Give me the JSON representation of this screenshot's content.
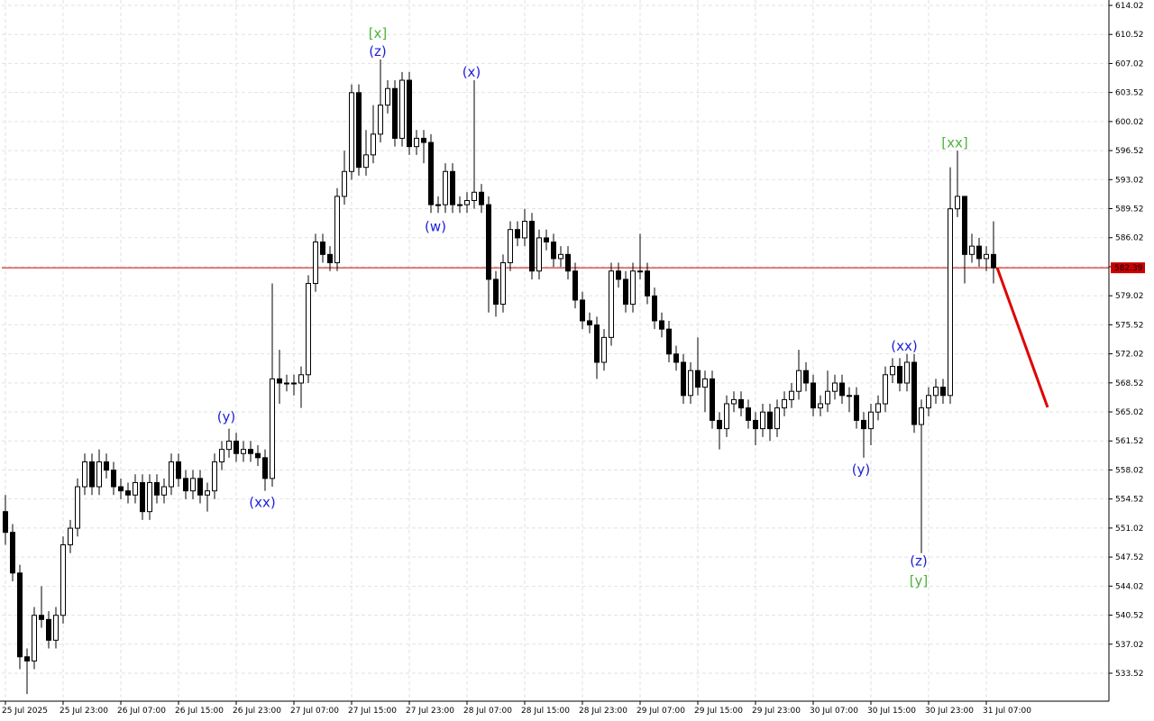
{
  "chart_data": {
    "type": "candlestick",
    "open": [
      553,
      550.5,
      545.6,
      535.5,
      535,
      540.5,
      540,
      537.5,
      540.5,
      549,
      551,
      556,
      559,
      556,
      559,
      558,
      556,
      555.5,
      555,
      556.5,
      553,
      556.5,
      555,
      556,
      559,
      557,
      555.5,
      557,
      555,
      555.5,
      559,
      560.5,
      561.5,
      560,
      560.5,
      560,
      559.5,
      557,
      569,
      568.5,
      568.5,
      568.5,
      569.5,
      580.5,
      585.5,
      584,
      583,
      591,
      594,
      603.5,
      594.5,
      596,
      598.5,
      602,
      604,
      598,
      605,
      597,
      598,
      597.5,
      590,
      590,
      594,
      590,
      590,
      590.5,
      591.5,
      590,
      581,
      578,
      583,
      587,
      586,
      588,
      582,
      586,
      585.5,
      583.5,
      584,
      582,
      578.5,
      576,
      575.5,
      571,
      574,
      582,
      581,
      578,
      582,
      582,
      579,
      576,
      575,
      572,
      571,
      567,
      570,
      568,
      569,
      564,
      563,
      566,
      566.5,
      565.5,
      564,
      563,
      565,
      563,
      565.5,
      566.5,
      567.5,
      570,
      568.5,
      565.5,
      566,
      567.5,
      568.5,
      567,
      567,
      564,
      563,
      565,
      566,
      569.5,
      570.5,
      568.5,
      571,
      563.5,
      565.5,
      567,
      568,
      567,
      589.5,
      591,
      584,
      585,
      583.5,
      584
    ],
    "high": [
      555,
      551.5,
      546.6,
      536.5,
      541.5,
      544,
      541,
      541.5,
      550,
      552,
      557,
      560,
      560,
      560.5,
      560,
      559,
      557,
      556.5,
      557.5,
      557.5,
      557.5,
      557.5,
      557,
      560,
      560,
      558,
      558,
      558,
      556.5,
      560,
      561.5,
      563,
      562.5,
      561.5,
      561.5,
      561,
      560.5,
      580.5,
      572.5,
      569.5,
      569.5,
      570.5,
      581.5,
      586.5,
      586.5,
      585,
      592,
      596.5,
      604.5,
      604.5,
      599,
      602,
      607.5,
      605,
      605,
      606,
      606,
      599,
      599,
      598.5,
      591,
      595,
      595,
      591,
      591.5,
      605,
      592.5,
      591,
      582,
      584,
      588,
      588,
      589.5,
      589,
      587,
      587,
      586.5,
      585,
      585,
      583,
      579.5,
      577,
      576.5,
      575,
      583,
      583,
      582,
      583,
      586.5,
      583,
      580,
      577,
      576,
      573,
      572,
      571,
      574,
      570,
      570,
      565,
      567,
      567.5,
      567.5,
      566.5,
      565,
      566,
      566,
      566.5,
      567.5,
      568.5,
      572.5,
      571,
      569.5,
      567,
      570,
      569.5,
      569.5,
      568,
      568,
      565,
      566,
      567,
      570.5,
      571.5,
      571.5,
      572,
      572,
      566.5,
      568,
      569,
      569,
      594.5,
      596.5,
      591,
      586.5,
      586,
      585,
      588
    ],
    "low": [
      549,
      544.6,
      534,
      531,
      534,
      539,
      536.5,
      536.5,
      539.5,
      548,
      550,
      555,
      555,
      555,
      557,
      555,
      554.5,
      554,
      554,
      552,
      552,
      554,
      554,
      555,
      556,
      554.5,
      554.5,
      554,
      553,
      554.5,
      558,
      559.5,
      559,
      559,
      559,
      558.5,
      555.5,
      556,
      566,
      567.5,
      567,
      565.5,
      568.5,
      579.5,
      583,
      582,
      582,
      590,
      593,
      593.5,
      593.5,
      595,
      597.5,
      601,
      597,
      597,
      596,
      596,
      595,
      589,
      589,
      589,
      589,
      589,
      589,
      589.5,
      589,
      577,
      576.5,
      577,
      582,
      585,
      585,
      581,
      581,
      584.5,
      582.5,
      582.5,
      581,
      577.5,
      575,
      574.5,
      569,
      570,
      573,
      580,
      577,
      577,
      581,
      578,
      575,
      574,
      571,
      570,
      566,
      566,
      567,
      565,
      563,
      560.5,
      562,
      565,
      564.5,
      563,
      561,
      562,
      561.5,
      562,
      564.5,
      565.5,
      566.5,
      567.5,
      564.5,
      564.5,
      565,
      566.5,
      566,
      565,
      563,
      559.5,
      561,
      564,
      565,
      568.5,
      567.5,
      567.5,
      562.5,
      548,
      564.5,
      566,
      566,
      566,
      588.5,
      580.5,
      583,
      582.5,
      582,
      580.5
    ],
    "close": [
      550.5,
      545.6,
      535.5,
      535,
      540.5,
      540,
      537.5,
      540.5,
      549,
      551,
      556,
      559,
      556,
      559,
      558,
      556,
      555.5,
      555,
      556.5,
      553,
      556.5,
      555,
      556,
      559,
      557,
      555.5,
      557,
      555,
      555.5,
      559,
      560.5,
      561.5,
      560,
      560.5,
      560,
      559.5,
      557,
      569,
      568.5,
      568.5,
      568.5,
      569.5,
      580.5,
      585.5,
      584,
      583,
      591,
      594,
      603.5,
      594.5,
      596,
      598.5,
      602,
      604,
      598,
      605,
      597,
      598,
      597.5,
      590,
      590,
      594,
      590,
      590,
      590.5,
      591.5,
      590,
      581,
      578,
      583,
      587,
      586,
      588,
      582,
      586,
      585.5,
      583.5,
      584,
      582,
      578.5,
      576,
      575.5,
      571,
      574,
      582,
      581,
      578,
      582,
      582,
      579,
      576,
      575,
      572,
      571,
      567,
      570,
      568,
      569,
      564,
      563,
      566,
      566.5,
      565.5,
      564,
      563,
      565,
      563,
      565.5,
      566.5,
      567.5,
      570,
      568.5,
      565.5,
      566,
      567.5,
      568.5,
      567,
      567,
      564,
      563,
      565,
      566,
      569.5,
      570.5,
      568.5,
      571,
      563.5,
      565.5,
      567,
      568,
      567,
      589.5,
      591,
      584,
      585,
      583.5,
      584,
      582.39
    ],
    "current_price": 582.39,
    "ylim": [
      530.15,
      614.02
    ],
    "yticks": [
      614.02,
      610.52,
      607.02,
      603.52,
      600.02,
      596.52,
      593.02,
      589.52,
      586.02,
      582.52,
      579.02,
      575.52,
      572.02,
      568.52,
      565.02,
      561.52,
      558.02,
      554.52,
      551.02,
      547.52,
      544.02,
      540.52,
      537.02,
      533.52
    ],
    "xlim": [
      -0.5,
      153
    ],
    "xticks": [
      {
        "value": 0,
        "label": "25 Jul 2025"
      },
      {
        "value": 8,
        "label": "25 Jul 23:00"
      },
      {
        "value": 16,
        "label": "26 Jul 07:00"
      },
      {
        "value": 24,
        "label": "26 Jul 15:00"
      },
      {
        "value": 32,
        "label": "26 Jul 23:00"
      },
      {
        "value": 40,
        "label": "27 Jul 07:00"
      },
      {
        "value": 48,
        "label": "27 Jul 15:00"
      },
      {
        "value": 56,
        "label": "27 Jul 23:00"
      },
      {
        "value": 64,
        "label": "28 Jul 07:00"
      },
      {
        "value": 72,
        "label": "28 Jul 15:00"
      },
      {
        "value": 80,
        "label": "28 Jul 23:00"
      },
      {
        "value": 88,
        "label": "29 Jul 07:00"
      },
      {
        "value": 96,
        "label": "29 Jul 15:00"
      },
      {
        "value": 104,
        "label": "29 Jul 23:00"
      },
      {
        "value": 112,
        "label": "30 Jul 07:00"
      },
      {
        "value": 120,
        "label": "30 Jul 15:00"
      },
      {
        "value": 128,
        "label": "30 Jul 23:00"
      },
      {
        "value": 136,
        "label": "31 Jul 07:00"
      }
    ],
    "grid": true,
    "up_color": "#ffffff",
    "down_color": "#000000",
    "price_line_color": "#cc0000",
    "annotations": [
      {
        "text": "[x]",
        "color": "#4cb33a"
      },
      {
        "text": "(z)",
        "color": "#1f1fd6"
      },
      {
        "text": "(x)",
        "color": "#1f1fd6"
      },
      {
        "text": "(w)",
        "color": "#1f1fd6"
      },
      {
        "text": "(y)",
        "color": "#1f1fd6"
      },
      {
        "text": "(xx)",
        "color": "#1f1fd6"
      },
      {
        "text": "(y)",
        "color": "#1f1fd6"
      },
      {
        "text": "(xx)",
        "color": "#1f1fd6"
      },
      {
        "text": "(z)",
        "color": "#1f1fd6"
      },
      {
        "text": "[y]",
        "color": "#4cb33a"
      },
      {
        "text": "[xx]",
        "color": "#4cb33a"
      }
    ]
  }
}
